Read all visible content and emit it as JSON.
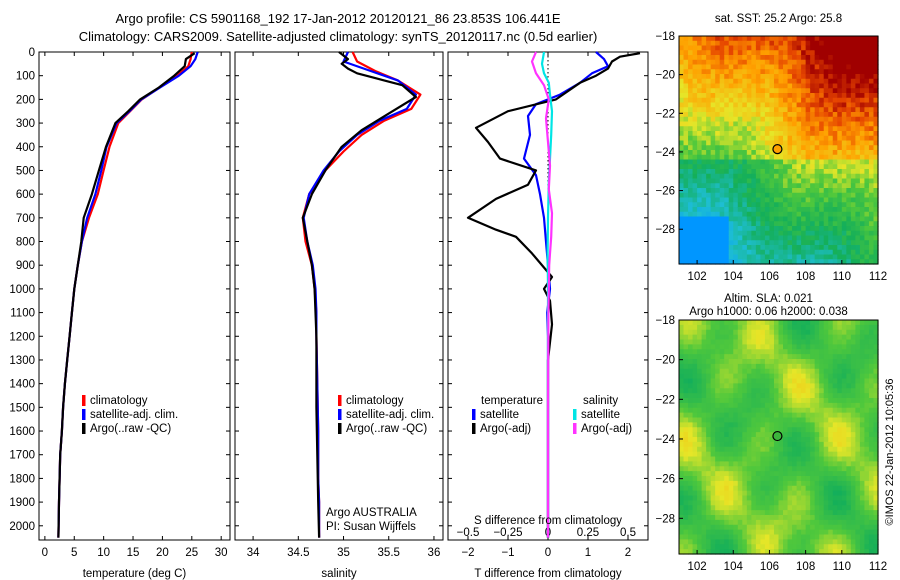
{
  "header": {
    "line1": "Argo profile: CS 5901168_192 17-Jan-2012 20120121_86 23.853S 106.441E",
    "line2": "Climatology: CARS2009. Satellite-adjusted climatology: synTS_20120117.nc (0.5d earlier)"
  },
  "footer": {
    "stamp": "©IMOS 22-Jan-2012 10:05:36"
  },
  "colors": {
    "clim": "#ff0000",
    "sat": "#0000ff",
    "argo": "#000000",
    "sat_s": "#00e5e5",
    "argo_s": "#ff33ff"
  },
  "chart_data": [
    {
      "type": "line",
      "id": "temperature",
      "xlabel": "temperature (deg C)",
      "xlim": [
        -1,
        31.5
      ],
      "ylim": [
        0,
        2060
      ],
      "xticks": [
        0,
        5,
        10,
        15,
        20,
        25,
        30
      ],
      "yticks": [
        0,
        100,
        200,
        300,
        400,
        500,
        600,
        700,
        800,
        900,
        1000,
        1100,
        1200,
        1300,
        1400,
        1500,
        1600,
        1700,
        1800,
        1900,
        2000
      ],
      "legend": {
        "placement": "lower-left",
        "entries": [
          "climatology",
          "satellite-adj. clim.",
          "Argo(..raw -QC)"
        ]
      },
      "series": [
        {
          "name": "climatology",
          "color": "clim",
          "x": [
            25.0,
            24.8,
            24.4,
            22.5,
            19.5,
            16.5,
            14.5,
            12.5,
            11.0,
            10.0,
            9.0,
            7.5,
            6.3,
            5.6,
            5.0,
            4.6,
            4.2,
            3.8,
            3.4,
            3.1,
            2.9,
            2.6,
            2.4,
            2.3
          ],
          "y": [
            0,
            30,
            60,
            100,
            150,
            200,
            250,
            300,
            400,
            500,
            600,
            700,
            800,
            900,
            1000,
            1100,
            1200,
            1300,
            1400,
            1500,
            1600,
            1700,
            1900,
            2050
          ]
        },
        {
          "name": "satellite-adj. clim.",
          "color": "sat",
          "x": [
            26.0,
            25.6,
            24.8,
            22.8,
            19.6,
            16.4,
            14.4,
            12.2,
            10.5,
            9.6,
            8.6,
            7.2,
            6.3,
            5.6,
            5.0,
            4.6,
            4.2,
            3.8,
            3.4,
            3.1,
            2.9,
            2.6,
            2.4,
            2.3
          ],
          "y": [
            0,
            30,
            60,
            100,
            150,
            200,
            250,
            300,
            400,
            500,
            600,
            700,
            800,
            900,
            1000,
            1100,
            1200,
            1300,
            1400,
            1500,
            1600,
            1700,
            1900,
            2050
          ]
        },
        {
          "name": "Argo(..raw -QC)",
          "color": "argo",
          "x": [
            25.5,
            24.0,
            23.8,
            22.0,
            19.4,
            16.2,
            14.2,
            12.0,
            10.4,
            9.2,
            8.0,
            6.6,
            6.2,
            5.6,
            5.0,
            4.6,
            4.2,
            3.8,
            3.4,
            3.1,
            2.9,
            2.6,
            2.4,
            2.3
          ],
          "y": [
            5,
            30,
            60,
            100,
            150,
            200,
            250,
            300,
            400,
            500,
            600,
            700,
            800,
            900,
            1000,
            1100,
            1200,
            1300,
            1400,
            1500,
            1600,
            1700,
            1900,
            2050
          ]
        }
      ]
    },
    {
      "type": "line",
      "id": "salinity",
      "xlabel": "salinity",
      "xlim": [
        33.8,
        36.1
      ],
      "ylim": [
        0,
        2060
      ],
      "xticks": [
        34,
        34.5,
        35,
        35.5,
        36
      ],
      "legend": {
        "placement": "lower-right",
        "entries": [
          "climatology",
          "satellite-adj. clim.",
          "Argo(..raw -QC)"
        ]
      },
      "annotation": [
        "Argo AUSTRALIA",
        "PI: Susan Wijffels"
      ],
      "series": [
        {
          "name": "climatology",
          "color": "clim",
          "x": [
            35.1,
            35.15,
            35.35,
            35.6,
            35.85,
            35.75,
            35.45,
            35.2,
            35.0,
            34.8,
            34.62,
            34.55,
            34.58,
            34.65,
            34.68,
            34.7,
            34.7,
            34.71,
            34.72,
            34.72,
            34.73,
            34.73,
            34.73
          ],
          "y": [
            0,
            40,
            80,
            120,
            180,
            240,
            290,
            350,
            420,
            500,
            600,
            700,
            800,
            900,
            1000,
            1100,
            1200,
            1400,
            1600,
            1800,
            1900,
            2000,
            2050
          ]
        },
        {
          "name": "satellite-adj. clim.",
          "color": "sat",
          "x": [
            35.05,
            35.0,
            35.3,
            35.6,
            35.8,
            35.7,
            35.4,
            35.15,
            34.95,
            34.78,
            34.62,
            34.56,
            34.6,
            34.66,
            34.69,
            34.7,
            34.7,
            34.71,
            34.72,
            34.72,
            34.73,
            34.73,
            34.73
          ],
          "y": [
            0,
            40,
            80,
            120,
            180,
            240,
            290,
            350,
            420,
            500,
            600,
            700,
            800,
            900,
            1000,
            1100,
            1200,
            1400,
            1600,
            1800,
            1900,
            2000,
            2050
          ]
        },
        {
          "name": "Argo(..raw -QC)",
          "color": "argo",
          "x": [
            34.95,
            35.05,
            34.98,
            35.05,
            35.15,
            35.35,
            35.65,
            35.8,
            35.5,
            35.2,
            34.98,
            34.8,
            34.65,
            34.55,
            34.6,
            34.65,
            34.68,
            34.7,
            34.7,
            34.72,
            34.73
          ],
          "y": [
            0,
            30,
            50,
            70,
            90,
            110,
            140,
            190,
            260,
            330,
            400,
            500,
            600,
            700,
            800,
            900,
            1000,
            1200,
            1500,
            1900,
            2050
          ]
        }
      ]
    },
    {
      "type": "line",
      "id": "differences",
      "xlabel_bottom": "T difference from climatology",
      "xlabel_top": "S difference from climatology",
      "xlim": [
        -2.5,
        2.5
      ],
      "ylim": [
        0,
        2060
      ],
      "xticks_bottom": [
        -2,
        -1,
        0,
        1,
        2
      ],
      "xticks_top": [
        -0.5,
        -0.25,
        0,
        0.25,
        0.5
      ],
      "xticks_top_labels": [
        "−0.5",
        "−0.25",
        "0",
        "0.25",
        "0.5"
      ],
      "xticks_bottom_labels": [
        "−2",
        "−1",
        "0",
        "1",
        "2"
      ],
      "legend": {
        "placement": "lower-center",
        "temperature_title": "temperature",
        "salinity_title": "salinity",
        "temperature_entries": [
          "satellite",
          "Argo(-adj)"
        ],
        "salinity_entries": [
          "satellite",
          "Argo(-adj)"
        ]
      },
      "series": [
        {
          "name": "temperature satellite",
          "color": "sat",
          "x": [
            1.2,
            1.4,
            1.5,
            1.1,
            0.8,
            0.3,
            -0.3,
            -0.5,
            -0.45,
            -0.6,
            -0.3,
            -0.2,
            -0.15,
            -0.1,
            -0.05,
            0,
            0.05,
            -0.02,
            0,
            0,
            0
          ],
          "y": [
            0,
            30,
            60,
            90,
            130,
            180,
            220,
            270,
            350,
            450,
            520,
            600,
            650,
            700,
            800,
            900,
            1000,
            1100,
            1200,
            1500,
            2050
          ]
        },
        {
          "name": "temperature Argo(-adj)",
          "color": "argo",
          "x": [
            2.3,
            1.8,
            1.6,
            1.5,
            1.2,
            0.8,
            0.2,
            -1.0,
            -1.8,
            -1.5,
            -1.2,
            -0.3,
            -0.5,
            -1.3,
            -2.0,
            -1.3,
            -0.8,
            -0.4,
            0.1,
            -0.1,
            0.05,
            0.1,
            0,
            0
          ],
          "y": [
            5,
            20,
            40,
            70,
            100,
            130,
            200,
            250,
            320,
            380,
            450,
            500,
            560,
            620,
            700,
            750,
            780,
            850,
            950,
            1000,
            1050,
            1150,
            1300,
            2050
          ]
        },
        {
          "name": "salinity satellite",
          "color": "sat_s",
          "x": [
            -0.1,
            -0.15,
            -0.1,
            0.02,
            0.05,
            0.1,
            0.08,
            0.05,
            0.02,
            0.0,
            -0.01,
            0.0,
            0.0,
            0.0
          ],
          "y": [
            0,
            50,
            90,
            130,
            180,
            250,
            350,
            450,
            550,
            700,
            850,
            1000,
            1500,
            2050
          ]
        },
        {
          "name": "salinity Argo(-adj)",
          "color": "argo_s",
          "x": [
            -0.3,
            -0.4,
            -0.3,
            -0.1,
            0.02,
            -0.05,
            0.0,
            0.05,
            0.02,
            0.1,
            0.08,
            0.05,
            0.03,
            0.02,
            0.01,
            0.0,
            0.0
          ],
          "y": [
            0,
            40,
            90,
            140,
            200,
            280,
            380,
            480,
            580,
            680,
            780,
            850,
            900,
            1000,
            1100,
            1500,
            2050
          ]
        }
      ]
    },
    {
      "type": "heatmap",
      "id": "sst-map",
      "title": "sat. SST: 25.2  Argo: 25.8",
      "xlim": [
        101,
        112
      ],
      "ylim": [
        -29.8,
        -18
      ],
      "xticks": [
        102,
        104,
        106,
        108,
        110,
        112
      ],
      "yticks": [
        -18,
        -20,
        -22,
        -24,
        -26,
        -28
      ],
      "marker": {
        "lon": 106.441,
        "lat": -23.853
      }
    },
    {
      "type": "heatmap",
      "id": "sla-map",
      "title": [
        "Altim. SLA: 0.021",
        "Argo h1000: 0.06 h2000: 0.038"
      ],
      "xlim": [
        101,
        112
      ],
      "ylim": [
        -29.8,
        -18
      ],
      "xticks": [
        102,
        104,
        106,
        108,
        110,
        112
      ],
      "yticks": [
        -18,
        -20,
        -22,
        -24,
        -26,
        -28
      ],
      "marker": {
        "lon": 106.441,
        "lat": -23.853
      }
    }
  ]
}
